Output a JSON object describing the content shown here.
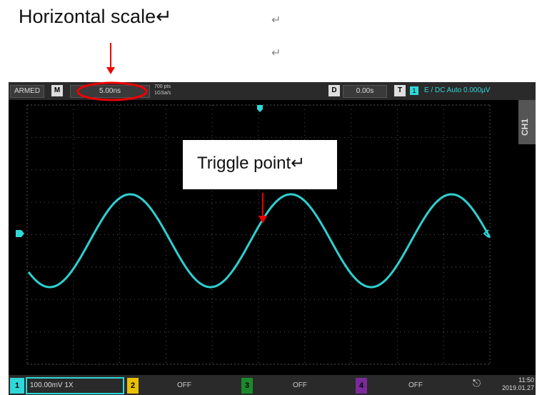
{
  "annotations": {
    "horizontal_scale": "Horizontal scale↵",
    "paragraph_marks": [
      "↵",
      "↵"
    ],
    "trigger_point": "Triggle point↵"
  },
  "top_bar": {
    "state": "ARMED",
    "mode": "M",
    "timebase": "5.00ns",
    "points": "700 pts",
    "sample_rate": "1GSa/s",
    "delay_label": "D",
    "delay": "0.00s",
    "trigger_label": "T",
    "trigger_channel": "1",
    "trigger_info": "E / DC Auto 0.000µV"
  },
  "side_tab": "CH1",
  "bottom_bar": {
    "channels": [
      {
        "number": "1",
        "setting": "100.00mV 1X"
      },
      {
        "number": "2",
        "setting": "OFF"
      },
      {
        "number": "3",
        "setting": "OFF"
      },
      {
        "number": "4",
        "setting": "OFF"
      }
    ],
    "time": "11:50",
    "date": "2019.01.27"
  }
}
